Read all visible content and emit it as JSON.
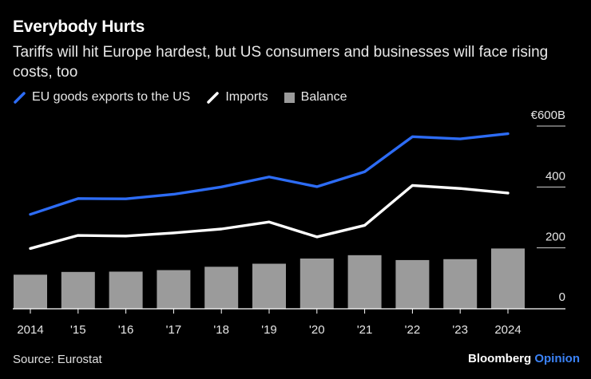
{
  "header": {
    "title": "Everybody Hurts",
    "subtitle": "Tariffs will hit Europe hardest, but US consumers and businesses will face rising costs, too"
  },
  "legend": {
    "exports": "EU goods exports to the US",
    "imports": "Imports",
    "balance": "Balance"
  },
  "footer": {
    "source": "Source: Eurostat",
    "brand_main": "Bloomberg",
    "brand_accent": "Opinion"
  },
  "colors": {
    "background": "#000000",
    "exports": "#2d6cf5",
    "imports": "#ffffff",
    "balance": "#9b9b9b",
    "grid": "#d0d0d0",
    "brand_accent": "#3b82f6"
  },
  "chart_data": {
    "type": "bar+line",
    "title": "Everybody Hurts",
    "categories": [
      "2014",
      "'15",
      "'16",
      "'17",
      "'18",
      "'19",
      "'20",
      "'21",
      "'22",
      "'23",
      "2024"
    ],
    "series": [
      {
        "name": "EU goods exports to the US",
        "type": "line",
        "values": [
          310,
          362,
          361,
          376,
          400,
          433,
          401,
          450,
          565,
          558,
          575
        ]
      },
      {
        "name": "Imports",
        "type": "line",
        "values": [
          198,
          241,
          239,
          249,
          262,
          285,
          236,
          274,
          405,
          395,
          380
        ]
      },
      {
        "name": "Balance",
        "type": "bar",
        "values": [
          112,
          121,
          122,
          127,
          138,
          148,
          165,
          176,
          160,
          163,
          198
        ]
      }
    ],
    "y_ticks": [
      {
        "value": 0,
        "label": "0"
      },
      {
        "value": 200,
        "label": "200"
      },
      {
        "value": 400,
        "label": "400"
      },
      {
        "value": 600,
        "label": "€600B"
      }
    ],
    "ylim": [
      0,
      600
    ],
    "y_axis_side": "right",
    "xlabel": "",
    "ylabel": ""
  }
}
